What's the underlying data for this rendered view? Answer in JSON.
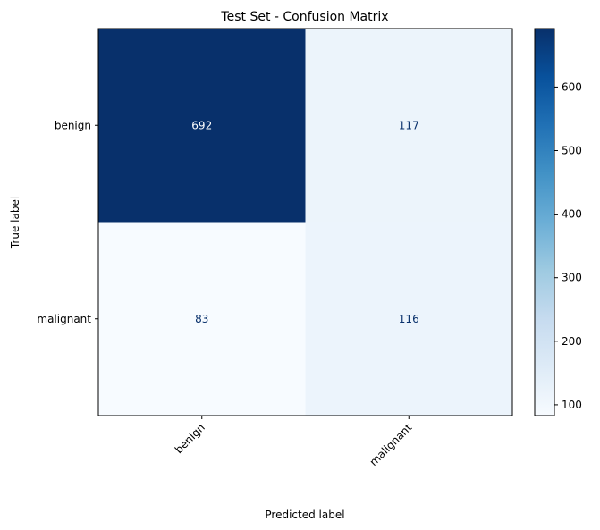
{
  "chart_data": {
    "type": "heatmap",
    "title": "Test Set - Confusion Matrix",
    "xlabel": "Predicted label",
    "ylabel": "True label",
    "x_categories": [
      "benign",
      "malignant"
    ],
    "y_categories": [
      "benign",
      "malignant"
    ],
    "values": [
      [
        692,
        117
      ],
      [
        83,
        116
      ]
    ],
    "colormap": "Blues",
    "color_range": [
      83,
      692
    ],
    "colorbar_ticks": [
      100,
      200,
      300,
      400,
      500,
      600
    ],
    "x_tick_rotation": "45deg",
    "grid": false,
    "colors": {
      "low": "#f7fbff",
      "high": "#08306b",
      "text_light": "#ffffff",
      "text_dark": "#08306b"
    }
  }
}
